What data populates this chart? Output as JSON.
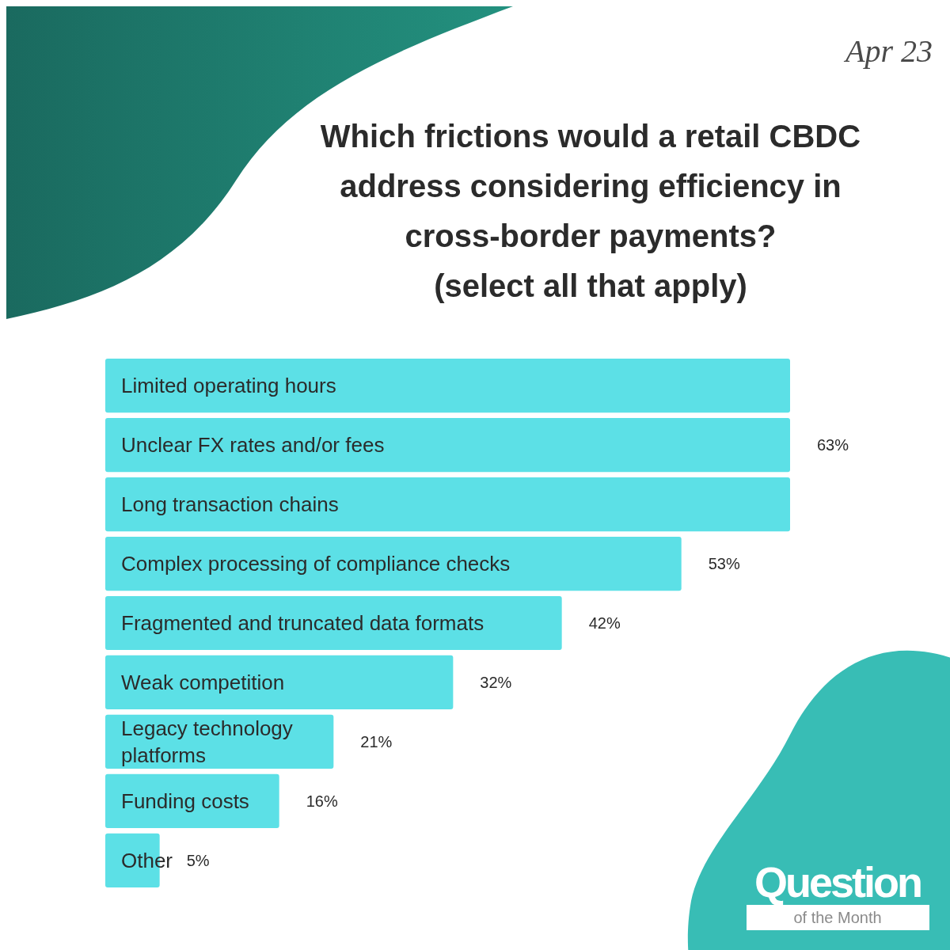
{
  "chart_data": {
    "type": "bar",
    "orientation": "horizontal",
    "title": "Which frictions would a retail CBDC address considering efficiency in cross-border payments?",
    "subtitle": "(select all that apply)",
    "categories": [
      "Limited operating hours",
      "Unclear FX rates and/or fees",
      "Long transaction chains",
      "Complex processing of compliance checks",
      "Fragmented and truncated data formats",
      "Weak competition",
      "Legacy technology platforms",
      "Funding costs",
      "Other"
    ],
    "values": [
      63,
      63,
      63,
      53,
      42,
      32,
      21,
      16,
      5
    ],
    "value_labels": [
      null,
      "63%",
      null,
      "53%",
      "42%",
      "32%",
      "21%",
      "16%",
      "5%"
    ],
    "color": "#5ce0e6",
    "annotations": [
      "Apr 23",
      "Question",
      "of the Month"
    ]
  }
}
